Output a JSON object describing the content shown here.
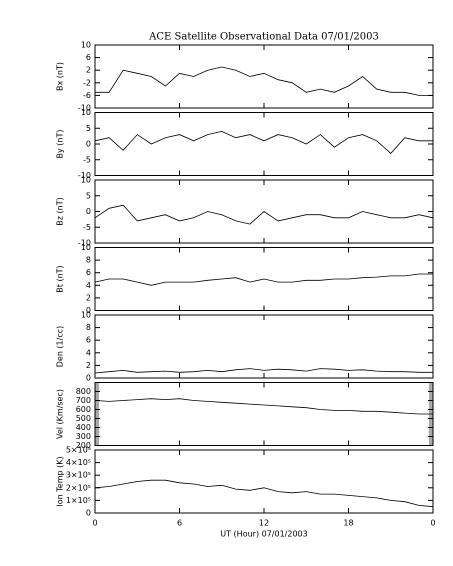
{
  "chart_data": [
    {
      "type": "line",
      "title": "ACE Satellite Observational Data   07/01/2003",
      "ylabel": "Bx (nT)",
      "x": [
        0,
        1,
        2,
        3,
        4,
        5,
        6,
        7,
        8,
        9,
        10,
        11,
        12,
        13,
        14,
        15,
        16,
        17,
        18,
        19,
        20,
        21,
        22,
        23,
        24
      ],
      "values": [
        -5,
        -5,
        2,
        1,
        0,
        -3,
        1,
        0,
        2,
        3,
        2,
        0,
        1,
        -1,
        -2,
        -5,
        -4,
        -5,
        -3,
        0,
        -4,
        -5,
        -5,
        -6,
        -6
      ],
      "xlim": [
        0,
        24
      ],
      "xticks": [
        0,
        6,
        12,
        18,
        24
      ],
      "ylim": [
        -10,
        10
      ],
      "yticks": [
        -10,
        -6,
        -2,
        2,
        6,
        10
      ]
    },
    {
      "type": "line",
      "ylabel": "By (nT)",
      "x": [
        0,
        1,
        2,
        3,
        4,
        5,
        6,
        7,
        8,
        9,
        10,
        11,
        12,
        13,
        14,
        15,
        16,
        17,
        18,
        19,
        20,
        21,
        22,
        23,
        24
      ],
      "values": [
        1,
        2,
        -2,
        3,
        0,
        2,
        3,
        1,
        3,
        4,
        2,
        3,
        1,
        3,
        2,
        0,
        3,
        -1,
        2,
        3,
        1,
        -3,
        2,
        1,
        1
      ],
      "xlim": [
        0,
        24
      ],
      "xticks": [
        0,
        6,
        12,
        18,
        24
      ],
      "ylim": [
        -10,
        10
      ],
      "yticks": [
        -10,
        -5,
        0,
        5,
        10
      ]
    },
    {
      "type": "line",
      "ylabel": "Bz (nT)",
      "x": [
        0,
        1,
        2,
        3,
        4,
        5,
        6,
        7,
        8,
        9,
        10,
        11,
        12,
        13,
        14,
        15,
        16,
        17,
        18,
        19,
        20,
        21,
        22,
        23,
        24
      ],
      "values": [
        -2,
        1,
        2,
        -3,
        -2,
        -1,
        -3,
        -2,
        0,
        -1,
        -3,
        -4,
        0,
        -3,
        -2,
        -1,
        -1,
        -2,
        -2,
        0,
        -1,
        -2,
        -2,
        -1,
        -2
      ],
      "xlim": [
        0,
        24
      ],
      "xticks": [
        0,
        6,
        12,
        18,
        24
      ],
      "ylim": [
        -10,
        10
      ],
      "yticks": [
        -10,
        -5,
        0,
        5,
        10
      ]
    },
    {
      "type": "line",
      "ylabel": "Bt (nT)",
      "x": [
        0,
        1,
        2,
        3,
        4,
        5,
        6,
        7,
        8,
        9,
        10,
        11,
        12,
        13,
        14,
        15,
        16,
        17,
        18,
        19,
        20,
        21,
        22,
        23,
        24
      ],
      "values": [
        4.5,
        5,
        5,
        4.5,
        4,
        4.5,
        4.5,
        4.5,
        4.8,
        5,
        5.2,
        4.5,
        5,
        4.5,
        4.5,
        4.8,
        4.8,
        5,
        5,
        5.2,
        5.3,
        5.5,
        5.5,
        5.8,
        5.8
      ],
      "xlim": [
        0,
        24
      ],
      "xticks": [
        0,
        6,
        12,
        18,
        24
      ],
      "ylim": [
        0,
        10
      ],
      "yticks": [
        0,
        2,
        4,
        6,
        8,
        10
      ]
    },
    {
      "type": "line",
      "ylabel": "Den (1/cc)",
      "x": [
        0,
        1,
        2,
        3,
        4,
        5,
        6,
        7,
        8,
        9,
        10,
        11,
        12,
        13,
        14,
        15,
        16,
        17,
        18,
        19,
        20,
        21,
        22,
        23,
        24
      ],
      "values": [
        0.8,
        1,
        1.2,
        0.9,
        1,
        1.1,
        0.9,
        1,
        1.2,
        1,
        1.3,
        1.5,
        1.2,
        1.4,
        1.3,
        1.1,
        1.5,
        1.4,
        1.2,
        1.3,
        1.1,
        1,
        1,
        0.9,
        0.9
      ],
      "xlim": [
        0,
        24
      ],
      "xticks": [
        0,
        6,
        12,
        18,
        24
      ],
      "ylim": [
        0,
        10
      ],
      "yticks": [
        0,
        2,
        4,
        6,
        8,
        10
      ]
    },
    {
      "type": "line",
      "ylabel": "Vel (Km/sec)",
      "x": [
        0,
        1,
        2,
        3,
        4,
        5,
        6,
        7,
        8,
        9,
        10,
        11,
        12,
        13,
        14,
        15,
        16,
        17,
        18,
        19,
        20,
        21,
        22,
        23,
        24
      ],
      "values": [
        700,
        690,
        700,
        710,
        720,
        710,
        720,
        700,
        690,
        680,
        670,
        660,
        650,
        640,
        630,
        620,
        600,
        590,
        590,
        580,
        580,
        570,
        560,
        550,
        550
      ],
      "xlim": [
        0,
        24
      ],
      "xticks": [
        0,
        6,
        12,
        18,
        24
      ],
      "ylim": [
        200,
        900
      ],
      "yticks": [
        200,
        300,
        400,
        500,
        600,
        700,
        800
      ]
    },
    {
      "type": "line",
      "ylabel": "Ion Temp (K)",
      "xlabel": "UT (Hour)   07/01/2003",
      "x": [
        0,
        1,
        2,
        3,
        4,
        5,
        6,
        7,
        8,
        9,
        10,
        11,
        12,
        13,
        14,
        15,
        16,
        17,
        18,
        19,
        20,
        21,
        22,
        23,
        24
      ],
      "values": [
        200000,
        210000,
        230000,
        250000,
        260000,
        260000,
        240000,
        230000,
        210000,
        220000,
        190000,
        180000,
        200000,
        170000,
        160000,
        170000,
        150000,
        150000,
        140000,
        130000,
        120000,
        100000,
        90000,
        60000,
        50000
      ],
      "xlim": [
        0,
        24
      ],
      "xticks": [
        0,
        6,
        12,
        18,
        {
          "value": 24,
          "label": "0"
        }
      ],
      "ylim": [
        0,
        500000
      ],
      "yticks": [
        0,
        {
          "value": 100000,
          "label": "1×10⁵"
        },
        {
          "value": 200000,
          "label": "2×10⁵"
        },
        {
          "value": 300000,
          "label": "3×10⁵"
        },
        {
          "value": 400000,
          "label": "4×10⁵"
        },
        {
          "value": 500000,
          "label": "5×10⁵"
        }
      ]
    }
  ]
}
